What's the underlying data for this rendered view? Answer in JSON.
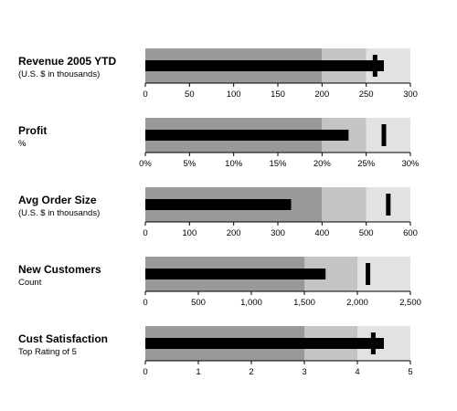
{
  "chart_data": {
    "type": "bullet",
    "colors": {
      "band_poor": "#999999",
      "band_satisfactory": "#c4c4c4",
      "band_good": "#e2e2e2",
      "bar": "#000000",
      "marker": "#000000"
    },
    "charts": [
      {
        "title": "Revenue 2005 YTD",
        "subtitle": "(U.S. $ in thousands)",
        "range": [
          0,
          300
        ],
        "ticks": [
          "0",
          "50",
          "100",
          "150",
          "200",
          "250",
          "300"
        ],
        "bands": [
          200,
          250,
          300
        ],
        "value": 270,
        "target": 260
      },
      {
        "title": "Profit",
        "subtitle": "%",
        "range": [
          0,
          30
        ],
        "ticks": [
          "0%",
          "5%",
          "10%",
          "15%",
          "20%",
          "25%",
          "30%"
        ],
        "bands": [
          20,
          25,
          30
        ],
        "value": 23,
        "target": 27
      },
      {
        "title": "Avg Order Size",
        "subtitle": "(U.S. $ in thousands)",
        "range": [
          0,
          600
        ],
        "ticks": [
          "0",
          "100",
          "200",
          "300",
          "400",
          "500",
          "600"
        ],
        "bands": [
          400,
          500,
          600
        ],
        "value": 330,
        "target": 550
      },
      {
        "title": "New Customers",
        "subtitle": "Count",
        "range": [
          0,
          2500
        ],
        "ticks": [
          "0",
          "500",
          "1,000",
          "1,500",
          "2,000",
          "2,500"
        ],
        "bands": [
          1500,
          2000,
          2500
        ],
        "value": 1700,
        "target": 2100
      },
      {
        "title": "Cust Satisfaction",
        "subtitle": "Top Rating of 5",
        "range": [
          0,
          5
        ],
        "ticks": [
          "0",
          "1",
          "2",
          "3",
          "4",
          "5"
        ],
        "bands": [
          3,
          4,
          5
        ],
        "value": 4.5,
        "target": 4.3
      }
    ]
  }
}
